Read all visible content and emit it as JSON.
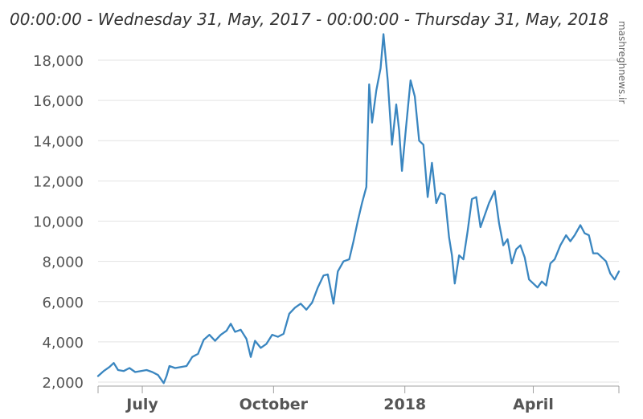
{
  "chart_data": {
    "type": "line",
    "title": "00:00:00 - Wednesday 31, May, 2017 - 00:00:00 - Thursday 31, May, 2018",
    "xlabel": "",
    "ylabel": "",
    "ylim": [
      2000,
      19000
    ],
    "yticks": [
      "2,000",
      "4,000",
      "6,000",
      "8,000",
      "10,000",
      "12,000",
      "14,000",
      "16,000",
      "18,000"
    ],
    "ytick_values": [
      2000,
      4000,
      6000,
      8000,
      10000,
      12000,
      14000,
      16000,
      18000
    ],
    "xrange": [
      "2017-05-31",
      "2018-05-31"
    ],
    "xticks": [
      {
        "label": "July",
        "date": "2017-07-01"
      },
      {
        "label": "October",
        "date": "2017-10-01"
      },
      {
        "label": "2018",
        "date": "2018-01-01"
      },
      {
        "label": "April",
        "date": "2018-04-01"
      }
    ],
    "grid": "horizontal",
    "line_color": "#3a86c0",
    "series": [
      {
        "values": [
          [
            "2017-05-31",
            2300
          ],
          [
            "2017-06-04",
            2550
          ],
          [
            "2017-06-08",
            2750
          ],
          [
            "2017-06-11",
            2950
          ],
          [
            "2017-06-14",
            2600
          ],
          [
            "2017-06-18",
            2550
          ],
          [
            "2017-06-22",
            2700
          ],
          [
            "2017-06-26",
            2500
          ],
          [
            "2017-06-30",
            2550
          ],
          [
            "2017-07-04",
            2600
          ],
          [
            "2017-07-08",
            2500
          ],
          [
            "2017-07-12",
            2350
          ],
          [
            "2017-07-16",
            1950
          ],
          [
            "2017-07-18",
            2300
          ],
          [
            "2017-07-20",
            2800
          ],
          [
            "2017-07-24",
            2700
          ],
          [
            "2017-07-28",
            2750
          ],
          [
            "2017-08-01",
            2800
          ],
          [
            "2017-08-05",
            3250
          ],
          [
            "2017-08-09",
            3400
          ],
          [
            "2017-08-13",
            4100
          ],
          [
            "2017-08-17",
            4350
          ],
          [
            "2017-08-21",
            4050
          ],
          [
            "2017-08-25",
            4350
          ],
          [
            "2017-08-29",
            4550
          ],
          [
            "2017-09-01",
            4900
          ],
          [
            "2017-09-04",
            4500
          ],
          [
            "2017-09-08",
            4600
          ],
          [
            "2017-09-12",
            4150
          ],
          [
            "2017-09-15",
            3250
          ],
          [
            "2017-09-18",
            4050
          ],
          [
            "2017-09-22",
            3700
          ],
          [
            "2017-09-26",
            3900
          ],
          [
            "2017-09-30",
            4350
          ],
          [
            "2017-10-04",
            4250
          ],
          [
            "2017-10-08",
            4400
          ],
          [
            "2017-10-12",
            5400
          ],
          [
            "2017-10-16",
            5700
          ],
          [
            "2017-10-20",
            5900
          ],
          [
            "2017-10-24",
            5600
          ],
          [
            "2017-10-28",
            5950
          ],
          [
            "2017-11-01",
            6700
          ],
          [
            "2017-11-05",
            7300
          ],
          [
            "2017-11-08",
            7350
          ],
          [
            "2017-11-12",
            5900
          ],
          [
            "2017-11-15",
            7500
          ],
          [
            "2017-11-19",
            8000
          ],
          [
            "2017-11-23",
            8100
          ],
          [
            "2017-11-26",
            9000
          ],
          [
            "2017-11-29",
            10000
          ],
          [
            "2017-12-02",
            10900
          ],
          [
            "2017-12-05",
            11700
          ],
          [
            "2017-12-07",
            16800
          ],
          [
            "2017-12-09",
            14900
          ],
          [
            "2017-12-12",
            16500
          ],
          [
            "2017-12-15",
            17600
          ],
          [
            "2017-12-17",
            19300
          ],
          [
            "2017-12-20",
            17000
          ],
          [
            "2017-12-23",
            13800
          ],
          [
            "2017-12-26",
            15800
          ],
          [
            "2017-12-28",
            14500
          ],
          [
            "2017-12-30",
            12500
          ],
          [
            "2018-01-02",
            14800
          ],
          [
            "2018-01-05",
            17000
          ],
          [
            "2018-01-08",
            16200
          ],
          [
            "2018-01-11",
            14000
          ],
          [
            "2018-01-14",
            13800
          ],
          [
            "2018-01-17",
            11200
          ],
          [
            "2018-01-20",
            12900
          ],
          [
            "2018-01-23",
            10900
          ],
          [
            "2018-01-26",
            11400
          ],
          [
            "2018-01-29",
            11300
          ],
          [
            "2018-02-01",
            9200
          ],
          [
            "2018-02-03",
            8300
          ],
          [
            "2018-02-05",
            6900
          ],
          [
            "2018-02-08",
            8300
          ],
          [
            "2018-02-11",
            8100
          ],
          [
            "2018-02-14",
            9500
          ],
          [
            "2018-02-17",
            11100
          ],
          [
            "2018-02-20",
            11200
          ],
          [
            "2018-02-23",
            9700
          ],
          [
            "2018-02-26",
            10300
          ],
          [
            "2018-03-01",
            10900
          ],
          [
            "2018-03-05",
            11500
          ],
          [
            "2018-03-08",
            9900
          ],
          [
            "2018-03-11",
            8800
          ],
          [
            "2018-03-14",
            9100
          ],
          [
            "2018-03-17",
            7900
          ],
          [
            "2018-03-20",
            8600
          ],
          [
            "2018-03-23",
            8800
          ],
          [
            "2018-03-26",
            8200
          ],
          [
            "2018-03-29",
            7100
          ],
          [
            "2018-04-01",
            6900
          ],
          [
            "2018-04-04",
            6700
          ],
          [
            "2018-04-07",
            7000
          ],
          [
            "2018-04-10",
            6800
          ],
          [
            "2018-04-13",
            7900
          ],
          [
            "2018-04-16",
            8100
          ],
          [
            "2018-04-20",
            8800
          ],
          [
            "2018-04-24",
            9300
          ],
          [
            "2018-04-27",
            9000
          ],
          [
            "2018-04-30",
            9300
          ],
          [
            "2018-05-04",
            9800
          ],
          [
            "2018-05-07",
            9400
          ],
          [
            "2018-05-10",
            9300
          ],
          [
            "2018-05-13",
            8400
          ],
          [
            "2018-05-16",
            8400
          ],
          [
            "2018-05-19",
            8200
          ],
          [
            "2018-05-22",
            8000
          ],
          [
            "2018-05-25",
            7400
          ],
          [
            "2018-05-28",
            7100
          ],
          [
            "2018-05-31",
            7500
          ]
        ]
      }
    ]
  },
  "watermark": "mashreghnews.ir"
}
